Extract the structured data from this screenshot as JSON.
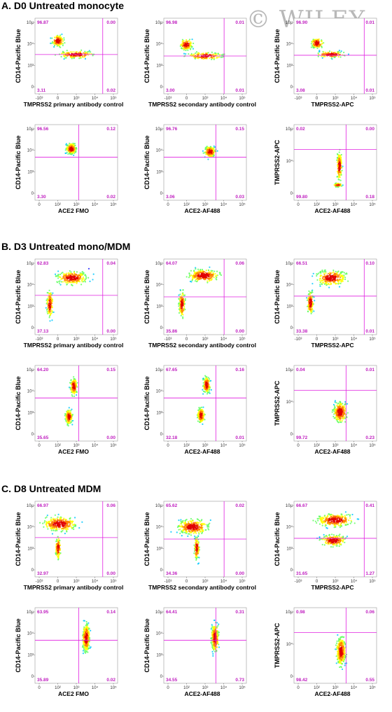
{
  "watermark": "© WILEY",
  "sections": [
    {
      "title": "A. D0 Untreated monocyte",
      "plots": [
        {
          "ylabel": "CD14-Pacific Blue",
          "xlabel": "TMPRSS2 primary antibody control",
          "q": [
            "96.87",
            "0.00",
            "3.11",
            "0.02"
          ],
          "xticks": [
            "-10³",
            "0",
            "10³",
            "10⁴",
            "10⁵"
          ],
          "yticks": [
            "10µ",
            "10⁴",
            "10³",
            "0"
          ]
        },
        {
          "ylabel": "CD14-Pacific Blue",
          "xlabel": "TMPRSS2 secondary antibody control",
          "q": [
            "96.98",
            "0.01",
            "3.00",
            "0.01"
          ],
          "xticks": [
            "-10³",
            "0",
            "10³",
            "10⁴",
            "10⁵"
          ],
          "yticks": [
            "10µ",
            "10⁴",
            "10³",
            "0"
          ]
        },
        {
          "ylabel": "CD14-Pacific Blue",
          "xlabel": "TMPRSS2-APC",
          "q": [
            "96.90",
            "0.01",
            "3.08",
            "0.01"
          ],
          "xticks": [
            "-10³",
            "0",
            "10³",
            "10⁴",
            "10⁵"
          ],
          "yticks": [
            "10µ",
            "10⁴",
            "10³",
            "0"
          ]
        },
        {
          "ylabel": "CD14-Pacific Blue",
          "xlabel": "ACE2 FMO",
          "q": [
            "96.56",
            "0.12",
            "3.30",
            "0.02"
          ],
          "xticks": [
            "0",
            "10²",
            "10³",
            "10⁴",
            "10⁵"
          ],
          "yticks": [
            "10µ",
            "10⁴",
            "10³",
            "0"
          ]
        },
        {
          "ylabel": "CD14-Pacific Blue",
          "xlabel": "ACE2-AF488",
          "q": [
            "96.76",
            "0.15",
            "3.06",
            "0.03"
          ],
          "xticks": [
            "0",
            "10²",
            "10³",
            "10⁴",
            "10⁵"
          ],
          "yticks": [
            "10µ",
            "10⁴",
            "10³",
            "0"
          ]
        },
        {
          "ylabel": "TMPRSS2-APC",
          "xlabel": "ACE2-AF488",
          "q": [
            "0.02",
            "0.00",
            "99.80",
            "0.18"
          ],
          "xticks": [
            "0",
            "10²",
            "10³",
            "10⁴",
            "10⁵"
          ],
          "yticks": [
            "10µ",
            "10⁴",
            "0"
          ]
        }
      ]
    },
    {
      "title": "B. D3 Untreated mono/MDM",
      "plots": [
        {
          "ylabel": "CD14-Pacific Blue",
          "xlabel": "TMPRSS2 primary antibody control",
          "q": [
            "62.83",
            "0.04",
            "37.13",
            "0.00"
          ],
          "xticks": [
            "-10³",
            "0",
            "10³",
            "10⁴",
            "10⁵"
          ],
          "yticks": [
            "10µ",
            "10⁴",
            "10³",
            "0"
          ]
        },
        {
          "ylabel": "CD14-Pacific Blue",
          "xlabel": "TMPRSS2 secondary antibody control",
          "q": [
            "64.07",
            "0.06",
            "35.86",
            "0.00"
          ],
          "xticks": [
            "-10³",
            "0",
            "10³",
            "10⁴",
            "10⁵"
          ],
          "yticks": [
            "10µ",
            "10⁴",
            "10³",
            "0"
          ]
        },
        {
          "ylabel": "CD14-Pacific Blue",
          "xlabel": "TMPRSS2-APC",
          "q": [
            "66.51",
            "0.10",
            "33.38",
            "0.01"
          ],
          "xticks": [
            "-10³",
            "0",
            "10³",
            "10⁴",
            "10⁵"
          ],
          "yticks": [
            "10µ",
            "10⁴",
            "10³",
            "0"
          ]
        },
        {
          "ylabel": "CD14-Pacific Blue",
          "xlabel": "ACE2 FMO",
          "q": [
            "64.20",
            "0.15",
            "35.65",
            "0.00"
          ],
          "xticks": [
            "0",
            "10²",
            "10³",
            "10⁴",
            "10⁵"
          ],
          "yticks": [
            "10µ",
            "10⁴",
            "10³",
            "0"
          ]
        },
        {
          "ylabel": "CD14-Pacific Blue",
          "xlabel": "ACE2-AF488",
          "q": [
            "67.65",
            "0.16",
            "32.18",
            "0.01"
          ],
          "xticks": [
            "0",
            "10²",
            "10³",
            "10⁴",
            "10⁵"
          ],
          "yticks": [
            "10µ",
            "10⁴",
            "10³",
            "0"
          ]
        },
        {
          "ylabel": "TMPRSS2-APC",
          "xlabel": "ACE2-AF488",
          "q": [
            "0.04",
            "0.01",
            "99.72",
            "0.23"
          ],
          "xticks": [
            "0",
            "10²",
            "10³",
            "10⁴",
            "10⁵"
          ],
          "yticks": [
            "10µ",
            "10⁴",
            "0"
          ]
        }
      ]
    },
    {
      "title": "C. D8 Untreated MDM",
      "plots": [
        {
          "ylabel": "CD14-Pacific Blue",
          "xlabel": "TMPRSS2 primary antibody control",
          "q": [
            "66.97",
            "0.06",
            "32.97",
            "0.00"
          ],
          "xticks": [
            "-10³",
            "0",
            "10³",
            "10⁴",
            "10⁵"
          ],
          "yticks": [
            "10µ",
            "10⁴",
            "10³",
            "0"
          ]
        },
        {
          "ylabel": "CD14-Pacific Blue",
          "xlabel": "TMPRSS2 secondary antibody control",
          "q": [
            "65.62",
            "0.02",
            "34.36",
            "0.00"
          ],
          "xticks": [
            "-10³",
            "0",
            "10³",
            "10⁴",
            "10⁵"
          ],
          "yticks": [
            "10µ",
            "10⁴",
            "10³",
            "0"
          ]
        },
        {
          "ylabel": "CD14-Pacific Blue",
          "xlabel": "TMPRSS2-APC",
          "q": [
            "66.67",
            "0.41",
            "31.65",
            "1.27"
          ],
          "xticks": [
            "-10³",
            "0",
            "10³",
            "10⁴",
            "10⁵"
          ],
          "yticks": [
            "10µ",
            "10⁴",
            "10³",
            "0"
          ]
        },
        {
          "ylabel": "CD14-Pacific Blue",
          "xlabel": "ACE2 FMO",
          "q": [
            "63.95",
            "0.14",
            "35.89",
            "0.02"
          ],
          "xticks": [
            "0",
            "10²",
            "10³",
            "10⁴",
            "10⁵"
          ],
          "yticks": [
            "10µ",
            "10⁴",
            "10³",
            "0"
          ]
        },
        {
          "ylabel": "CD14-Pacific Blue",
          "xlabel": "ACE2-AF488",
          "q": [
            "64.41",
            "0.31",
            "34.55",
            "0.73"
          ],
          "xticks": [
            "0",
            "10²",
            "10³",
            "10⁴",
            "10⁵"
          ],
          "yticks": [
            "10µ",
            "10⁴",
            "10³",
            "0"
          ]
        },
        {
          "ylabel": "TMPRSS2-APC",
          "xlabel": "ACE2-AF488",
          "q": [
            "0.98",
            "0.06",
            "98.42",
            "0.55"
          ],
          "xticks": [
            "0",
            "10²",
            "10³",
            "10⁴",
            "10⁵"
          ],
          "yticks": [
            "10µ",
            "10⁴",
            "0"
          ]
        }
      ]
    }
  ],
  "colors": {
    "gate": "#e020e0",
    "quadrant_text": "#c020c0",
    "density": [
      "#1a1aff",
      "#00c8ff",
      "#60ff60",
      "#ffff00",
      "#ff8000",
      "#e00000"
    ]
  }
}
